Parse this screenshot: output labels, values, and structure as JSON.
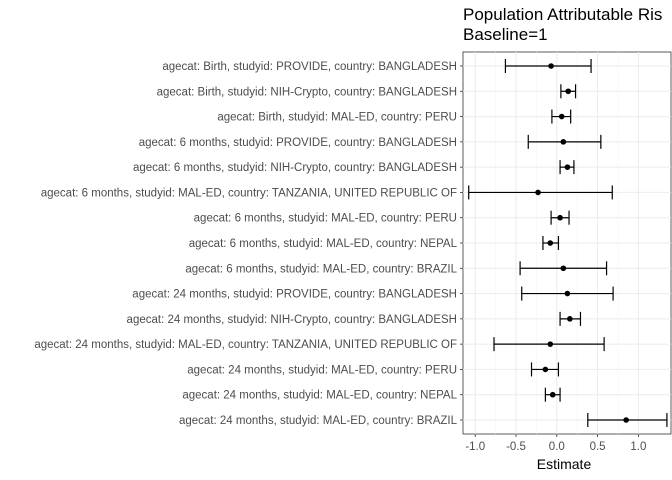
{
  "chart_data": {
    "type": "forest",
    "title_lines": [
      "Population Attributable Ris",
      "Baseline=1"
    ],
    "xlabel": "Estimate",
    "ylabel": "",
    "xlim": [
      -1.15,
      1.4
    ],
    "xticks": [
      -1.0,
      -0.5,
      0.0,
      0.5,
      1.0
    ],
    "xtick_labels": [
      "-1.0",
      "-0.5",
      "0.0",
      "0.5",
      "1.0"
    ],
    "grid": true,
    "rows": [
      {
        "label": "agecat: Birth, studyid: PROVIDE, country: BANGLADESH",
        "estimate": -0.07,
        "lower": -0.63,
        "upper": 0.42
      },
      {
        "label": "agecat: Birth, studyid: NIH-Crypto, country: BANGLADESH",
        "estimate": 0.14,
        "lower": 0.05,
        "upper": 0.23
      },
      {
        "label": "agecat: Birth, studyid: MAL-ED, country: PERU",
        "estimate": 0.06,
        "lower": -0.06,
        "upper": 0.17
      },
      {
        "label": "agecat: 6 months, studyid: PROVIDE, country: BANGLADESH",
        "estimate": 0.08,
        "lower": -0.35,
        "upper": 0.54
      },
      {
        "label": "agecat: 6 months, studyid: NIH-Crypto, country: BANGLADESH",
        "estimate": 0.13,
        "lower": 0.04,
        "upper": 0.21
      },
      {
        "label": "agecat: 6 months, studyid: MAL-ED, country: TANZANIA, UNITED REPUBLIC OF",
        "estimate": -0.23,
        "lower": -1.08,
        "upper": 0.68
      },
      {
        "label": "agecat: 6 months, studyid: MAL-ED, country: PERU",
        "estimate": 0.04,
        "lower": -0.07,
        "upper": 0.15
      },
      {
        "label": "agecat: 6 months, studyid: MAL-ED, country: NEPAL",
        "estimate": -0.08,
        "lower": -0.17,
        "upper": 0.02
      },
      {
        "label": "agecat: 6 months, studyid: MAL-ED, country: BRAZIL",
        "estimate": 0.08,
        "lower": -0.45,
        "upper": 0.61
      },
      {
        "label": "agecat: 24 months, studyid: PROVIDE, country: BANGLADESH",
        "estimate": 0.13,
        "lower": -0.43,
        "upper": 0.69
      },
      {
        "label": "agecat: 24 months, studyid: NIH-Crypto, country: BANGLADESH",
        "estimate": 0.16,
        "lower": 0.04,
        "upper": 0.29
      },
      {
        "label": "agecat: 24 months, studyid: MAL-ED, country: TANZANIA, UNITED REPUBLIC OF",
        "estimate": -0.08,
        "lower": -0.77,
        "upper": 0.58
      },
      {
        "label": "agecat: 24 months, studyid: MAL-ED, country: PERU",
        "estimate": -0.14,
        "lower": -0.31,
        "upper": 0.02
      },
      {
        "label": "agecat: 24 months, studyid: MAL-ED, country: NEPAL",
        "estimate": -0.05,
        "lower": -0.14,
        "upper": 0.04
      },
      {
        "label": "agecat: 24 months, studyid: MAL-ED, country: BRAZIL",
        "estimate": 0.85,
        "lower": 0.38,
        "upper": 1.35
      }
    ]
  }
}
